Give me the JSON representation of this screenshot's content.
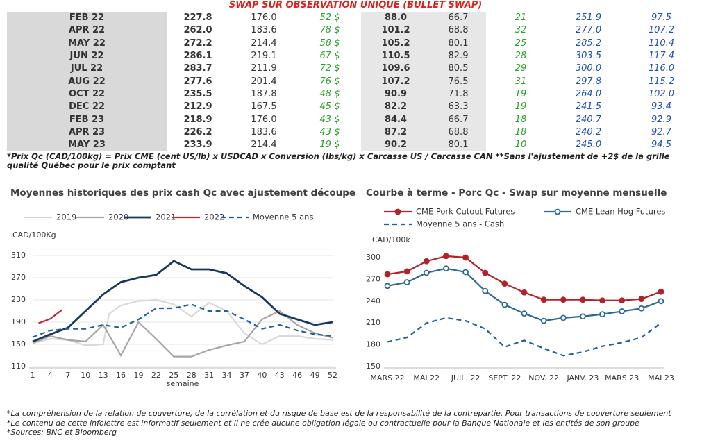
{
  "table": {
    "title": "SWAP SUR OBSERVATION UNIQUE (BULLET SWAP)",
    "rows": [
      [
        "FEB 22",
        "227.8",
        "176.0",
        "52 $",
        "88.0",
        "66.7",
        "21",
        "251.9",
        "97.5"
      ],
      [
        "APR 22",
        "262.0",
        "183.6",
        "78 $",
        "101.2",
        "68.8",
        "32",
        "277.0",
        "107.2"
      ],
      [
        "MAY 22",
        "272.2",
        "214.4",
        "58 $",
        "105.2",
        "80.1",
        "25",
        "285.2",
        "110.4"
      ],
      [
        "JUN 22",
        "286.1",
        "219.1",
        "67 $",
        "110.5",
        "82.9",
        "28",
        "303.5",
        "117.4"
      ],
      [
        "JUL 22",
        "283.7",
        "211.9",
        "72 $",
        "109.6",
        "80.5",
        "29",
        "300.0",
        "116.0"
      ],
      [
        "AUG 22",
        "277.6",
        "201.4",
        "76 $",
        "107.2",
        "76.5",
        "31",
        "297.8",
        "115.2"
      ],
      [
        "OCT 22",
        "235.5",
        "187.8",
        "48 $",
        "90.9",
        "71.8",
        "19",
        "264.0",
        "102.0"
      ],
      [
        "DEC 22",
        "212.9",
        "167.5",
        "45 $",
        "82.2",
        "63.3",
        "19",
        "241.5",
        "93.4"
      ],
      [
        "FEB 23",
        "218.9",
        "176.0",
        "43 $",
        "84.4",
        "66.7",
        "18",
        "240.7",
        "92.9"
      ],
      [
        "APR 23",
        "226.2",
        "183.6",
        "43 $",
        "87.2",
        "68.8",
        "18",
        "240.2",
        "92.7"
      ],
      [
        "MAY 23",
        "233.9",
        "214.4",
        "19 $",
        "90.2",
        "80.1",
        "10",
        "245.0",
        "94.5"
      ]
    ]
  },
  "footnote": "*Prix Qc (CAD/100kg) = Prix CME (cent US/lb) x USDCAD x Conversion (lbs/kg) x Carcasse US / Carcasse CAN **Sans l'ajustement de +2$ de la grille qualité Québec pour le prix comptant",
  "charts": [
    {
      "type": "line",
      "title": "Moyennes historiques des prix cash Qc avec ajustement découpe",
      "ylabel": "CAD/100Kg",
      "xlabel": "semaine",
      "xlim": [
        1,
        52
      ],
      "xticks": [
        1,
        4,
        7,
        10,
        13,
        16,
        19,
        22,
        25,
        28,
        31,
        34,
        37,
        40,
        43,
        46,
        49,
        52
      ],
      "ylim": [
        110,
        310
      ],
      "yticks": [
        110,
        150,
        190,
        230,
        270,
        310
      ],
      "grid": true,
      "series": [
        {
          "name": "2019",
          "color": "#d9d9d9",
          "dashed": false,
          "x": [
            1,
            4,
            7,
            10,
            13,
            14,
            16,
            19,
            22,
            25,
            28,
            31,
            34,
            37,
            40,
            43,
            46,
            49,
            52
          ],
          "values": [
            152,
            160,
            158,
            148,
            150,
            205,
            220,
            228,
            230,
            222,
            200,
            225,
            210,
            170,
            150,
            165,
            165,
            160,
            158
          ]
        },
        {
          "name": "2020",
          "color": "#a6a6a6",
          "dashed": false,
          "x": [
            1,
            4,
            7,
            10,
            13,
            16,
            19,
            22,
            25,
            28,
            31,
            34,
            37,
            40,
            43,
            46,
            49,
            52
          ],
          "values": [
            152,
            165,
            158,
            155,
            185,
            130,
            190,
            160,
            128,
            128,
            140,
            148,
            155,
            195,
            210,
            185,
            170,
            162
          ]
        },
        {
          "name": "2021",
          "color": "#17375e",
          "dashed": false,
          "x": [
            1,
            4,
            7,
            10,
            13,
            16,
            19,
            22,
            25,
            28,
            31,
            34,
            37,
            40,
            43,
            46,
            49,
            52
          ],
          "values": [
            155,
            168,
            180,
            210,
            240,
            262,
            270,
            275,
            300,
            285,
            285,
            278,
            255,
            235,
            205,
            195,
            185,
            190
          ]
        },
        {
          "name": "2022",
          "color": "#c0282d",
          "dashed": false,
          "x": [
            2,
            4,
            6
          ],
          "values": [
            188,
            196,
            212
          ]
        },
        {
          "name": "Moyenne 5 ans",
          "color": "#1f5f9e",
          "dashed": true,
          "x": [
            1,
            4,
            7,
            10,
            13,
            16,
            19,
            22,
            25,
            28,
            31,
            34,
            37,
            40,
            43,
            46,
            49,
            52
          ],
          "values": [
            163,
            175,
            178,
            178,
            185,
            180,
            195,
            215,
            215,
            222,
            210,
            210,
            195,
            178,
            185,
            175,
            168,
            165
          ]
        }
      ]
    },
    {
      "type": "line",
      "title": "Courbe à terme - Porc Qc - Swap sur moyenne mensuelle",
      "ylabel": "CAD/100k",
      "categories": [
        "MARS 22",
        null,
        "MAI 22",
        null,
        "JUIL. 22",
        null,
        "SEPT. 22",
        null,
        "NOV. 22",
        null,
        "JANV. 23",
        null,
        "MARS 23",
        null,
        "MAI 23"
      ],
      "ylim": [
        150,
        300
      ],
      "yticks": [
        150,
        180,
        210,
        240,
        270,
        300
      ],
      "grid": false,
      "series": [
        {
          "name": "CME Pork Cutout Futures",
          "color": "#b22228",
          "marker": "filled",
          "dashed": false,
          "values": [
            277,
            281,
            295,
            302,
            300,
            279,
            264,
            252,
            242,
            242,
            242,
            241,
            241,
            243,
            253
          ]
        },
        {
          "name": "CME Lean Hog Futures",
          "color": "#2a6a92",
          "marker": "open",
          "dashed": false,
          "values": [
            261,
            266,
            279,
            285,
            280,
            254,
            235,
            223,
            213,
            217,
            219,
            222,
            226,
            230,
            240
          ]
        },
        {
          "name": "Moyenne 5 ans - Cash",
          "color": "#1f5f9e",
          "marker": "none",
          "dashed": true,
          "values": [
            184,
            190,
            210,
            217,
            213,
            202,
            177,
            186,
            175,
            165,
            170,
            178,
            183,
            190,
            210
          ]
        }
      ]
    }
  ],
  "notes": [
    "*La compréhension de la relation de couverture, de la corrélation et du risque de base est de la responsabilité de la contrepartie. Pour transactions de couverture seulement",
    "*Le contenu de cette infolettre est informatif seulement et il ne crée aucune obligation légale ou contractuelle pour la Banque Nationale et les entités de son groupe",
    "*Sources: BNC et Bloomberg"
  ]
}
